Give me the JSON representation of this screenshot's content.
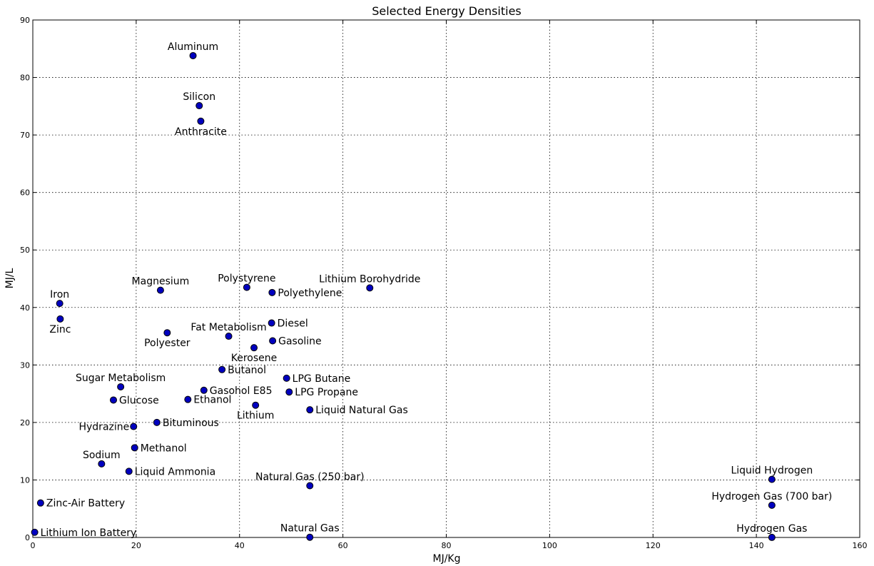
{
  "chart_data": {
    "type": "scatter",
    "title": "Selected Energy Densities",
    "xlabel": "MJ/Kg",
    "ylabel": "MJ/L",
    "xlim": [
      0,
      160
    ],
    "ylim": [
      0,
      90
    ],
    "xticks": [
      0,
      20,
      40,
      60,
      80,
      100,
      120,
      140,
      160
    ],
    "yticks": [
      0,
      10,
      20,
      30,
      40,
      50,
      60,
      70,
      80,
      90
    ],
    "grid": true,
    "marker_color": "#0000bf",
    "points": [
      {
        "label": "Aluminum",
        "x": 31,
        "y": 83.8,
        "pos": "above"
      },
      {
        "label": "Silicon",
        "x": 32.2,
        "y": 75.1,
        "pos": "above"
      },
      {
        "label": "Anthracite",
        "x": 32.5,
        "y": 72.4,
        "pos": "below"
      },
      {
        "label": "Magnesium",
        "x": 24.7,
        "y": 43,
        "pos": "above"
      },
      {
        "label": "Polystyrene",
        "x": 41.4,
        "y": 43.5,
        "pos": "above"
      },
      {
        "label": "Polyethylene",
        "x": 46.3,
        "y": 42.6,
        "pos": "right"
      },
      {
        "label": "Lithium Borohydride",
        "x": 65.2,
        "y": 43.4,
        "pos": "above"
      },
      {
        "label": "Iron",
        "x": 5.2,
        "y": 40.7,
        "pos": "above"
      },
      {
        "label": "Zinc",
        "x": 5.3,
        "y": 38,
        "pos": "below"
      },
      {
        "label": "Diesel",
        "x": 46.2,
        "y": 37.3,
        "pos": "right"
      },
      {
        "label": "Fat Metabolism",
        "x": 37.9,
        "y": 35,
        "pos": "above"
      },
      {
        "label": "Polyester",
        "x": 26,
        "y": 35.6,
        "pos": "below"
      },
      {
        "label": "Gasoline",
        "x": 46.4,
        "y": 34.2,
        "pos": "right"
      },
      {
        "label": "Kerosene",
        "x": 42.8,
        "y": 33,
        "pos": "below"
      },
      {
        "label": "Butanol",
        "x": 36.6,
        "y": 29.2,
        "pos": "right"
      },
      {
        "label": "LPG Butane",
        "x": 49.1,
        "y": 27.7,
        "pos": "right"
      },
      {
        "label": "Sugar Metabolism",
        "x": 17,
        "y": 26.2,
        "pos": "above"
      },
      {
        "label": "Gasohol E85",
        "x": 33.1,
        "y": 25.6,
        "pos": "right"
      },
      {
        "label": "LPG Propane",
        "x": 49.6,
        "y": 25.3,
        "pos": "right"
      },
      {
        "label": "Glucose",
        "x": 15.6,
        "y": 23.9,
        "pos": "right"
      },
      {
        "label": "Ethanol",
        "x": 30,
        "y": 24,
        "pos": "right"
      },
      {
        "label": "Lithium",
        "x": 43.1,
        "y": 23,
        "pos": "below"
      },
      {
        "label": "Liquid Natural Gas",
        "x": 53.6,
        "y": 22.2,
        "pos": "right"
      },
      {
        "label": "Bituminous",
        "x": 24,
        "y": 20,
        "pos": "right"
      },
      {
        "label": "Hydrazine",
        "x": 19.5,
        "y": 19.3,
        "pos": "left"
      },
      {
        "label": "Methanol",
        "x": 19.7,
        "y": 15.6,
        "pos": "right"
      },
      {
        "label": "Sodium",
        "x": 13.3,
        "y": 12.8,
        "pos": "above"
      },
      {
        "label": "Liquid Ammonia",
        "x": 18.6,
        "y": 11.5,
        "pos": "right"
      },
      {
        "label": "Natural Gas (250 bar)",
        "x": 53.6,
        "y": 9,
        "pos": "above"
      },
      {
        "label": "Liquid Hydrogen",
        "x": 143,
        "y": 10.1,
        "pos": "above"
      },
      {
        "label": "Hydrogen Gas (700 bar)",
        "x": 143,
        "y": 5.6,
        "pos": "above"
      },
      {
        "label": "Zinc-Air Battery",
        "x": 1.5,
        "y": 6,
        "pos": "right"
      },
      {
        "label": "Lithium Ion Battery",
        "x": 0.36,
        "y": 0.9,
        "pos": "right"
      },
      {
        "label": "Natural Gas",
        "x": 53.6,
        "y": 0.0364,
        "pos": "above"
      },
      {
        "label": "Hydrogen Gas",
        "x": 143,
        "y": 0.0108,
        "pos": "above"
      }
    ]
  }
}
